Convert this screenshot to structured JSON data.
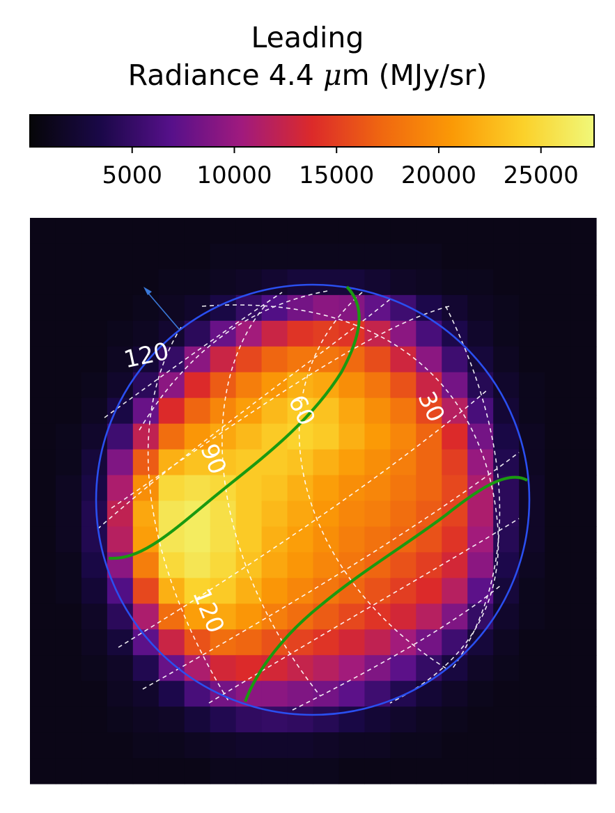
{
  "chart_data": {
    "type": "heatmap",
    "title": "Leading",
    "colorbar": {
      "label_prefix": "Radiance 4.4 ",
      "label_mu": "μ",
      "label_suffix": "m (MJy/sr)",
      "vmin": 0,
      "vmax": 27600,
      "ticks": [
        5000,
        10000,
        15000,
        20000,
        25000
      ],
      "tick_labels": [
        "5000",
        "10000",
        "15000",
        "20000",
        "25000"
      ],
      "colormap": "inferno-like",
      "stops": [
        "#060608",
        "#1a0848",
        "#56108a",
        "#a01a7e",
        "#dc2a2a",
        "#f06810",
        "#fb9a06",
        "#fbd12a",
        "#f0f87a"
      ]
    },
    "grid": {
      "rows": 22,
      "cols": 22,
      "fractions": [
        [
          0.03,
          0.03,
          0.03,
          0.03,
          0.03,
          0.03,
          0.03,
          0.03,
          0.03,
          0.03,
          0.03,
          0.03,
          0.03,
          0.03,
          0.03,
          0.03,
          0.03,
          0.03,
          0.03,
          0.03,
          0.03,
          0.03
        ],
        [
          0.03,
          0.03,
          0.03,
          0.03,
          0.03,
          0.03,
          0.03,
          0.04,
          0.04,
          0.04,
          0.04,
          0.04,
          0.04,
          0.04,
          0.04,
          0.04,
          0.03,
          0.03,
          0.03,
          0.03,
          0.03,
          0.03
        ],
        [
          0.03,
          0.03,
          0.03,
          0.03,
          0.03,
          0.04,
          0.04,
          0.05,
          0.06,
          0.08,
          0.1,
          0.1,
          0.1,
          0.08,
          0.06,
          0.05,
          0.04,
          0.04,
          0.03,
          0.03,
          0.03,
          0.03
        ],
        [
          0.03,
          0.03,
          0.03,
          0.03,
          0.04,
          0.05,
          0.07,
          0.12,
          0.18,
          0.24,
          0.3,
          0.34,
          0.33,
          0.27,
          0.2,
          0.13,
          0.08,
          0.05,
          0.04,
          0.03,
          0.03,
          0.03
        ],
        [
          0.03,
          0.03,
          0.03,
          0.04,
          0.05,
          0.08,
          0.16,
          0.28,
          0.38,
          0.46,
          0.52,
          0.54,
          0.52,
          0.45,
          0.34,
          0.22,
          0.13,
          0.07,
          0.04,
          0.03,
          0.03,
          0.03
        ],
        [
          0.03,
          0.03,
          0.03,
          0.05,
          0.09,
          0.18,
          0.34,
          0.46,
          0.56,
          0.62,
          0.66,
          0.66,
          0.63,
          0.57,
          0.47,
          0.34,
          0.2,
          0.1,
          0.05,
          0.03,
          0.03,
          0.03
        ],
        [
          0.03,
          0.03,
          0.04,
          0.07,
          0.16,
          0.34,
          0.5,
          0.6,
          0.68,
          0.74,
          0.8,
          0.78,
          0.72,
          0.66,
          0.58,
          0.46,
          0.3,
          0.15,
          0.07,
          0.04,
          0.03,
          0.03
        ],
        [
          0.03,
          0.03,
          0.05,
          0.12,
          0.28,
          0.5,
          0.62,
          0.7,
          0.76,
          0.82,
          0.86,
          0.84,
          0.78,
          0.72,
          0.66,
          0.56,
          0.42,
          0.22,
          0.09,
          0.04,
          0.03,
          0.03
        ],
        [
          0.03,
          0.04,
          0.07,
          0.2,
          0.44,
          0.64,
          0.74,
          0.78,
          0.82,
          0.86,
          0.88,
          0.86,
          0.8,
          0.75,
          0.7,
          0.62,
          0.5,
          0.3,
          0.12,
          0.05,
          0.03,
          0.03
        ],
        [
          0.03,
          0.04,
          0.1,
          0.32,
          0.6,
          0.8,
          0.84,
          0.84,
          0.86,
          0.86,
          0.84,
          0.8,
          0.76,
          0.72,
          0.68,
          0.62,
          0.54,
          0.36,
          0.14,
          0.05,
          0.03,
          0.03
        ],
        [
          0.03,
          0.05,
          0.12,
          0.4,
          0.72,
          0.9,
          0.92,
          0.9,
          0.86,
          0.84,
          0.8,
          0.76,
          0.72,
          0.7,
          0.66,
          0.62,
          0.56,
          0.4,
          0.16,
          0.06,
          0.03,
          0.03
        ],
        [
          0.03,
          0.05,
          0.14,
          0.44,
          0.78,
          0.94,
          0.96,
          0.92,
          0.86,
          0.82,
          0.78,
          0.74,
          0.7,
          0.68,
          0.64,
          0.6,
          0.55,
          0.4,
          0.16,
          0.06,
          0.03,
          0.03
        ],
        [
          0.03,
          0.05,
          0.14,
          0.42,
          0.76,
          0.94,
          0.96,
          0.92,
          0.86,
          0.8,
          0.76,
          0.72,
          0.68,
          0.65,
          0.62,
          0.58,
          0.52,
          0.38,
          0.15,
          0.06,
          0.03,
          0.03
        ],
        [
          0.03,
          0.04,
          0.12,
          0.34,
          0.68,
          0.9,
          0.94,
          0.9,
          0.84,
          0.78,
          0.74,
          0.7,
          0.66,
          0.62,
          0.58,
          0.54,
          0.48,
          0.34,
          0.13,
          0.05,
          0.03,
          0.03
        ],
        [
          0.03,
          0.04,
          0.09,
          0.24,
          0.56,
          0.8,
          0.88,
          0.86,
          0.8,
          0.74,
          0.7,
          0.66,
          0.62,
          0.58,
          0.54,
          0.5,
          0.42,
          0.26,
          0.1,
          0.04,
          0.03,
          0.03
        ],
        [
          0.03,
          0.03,
          0.06,
          0.16,
          0.4,
          0.64,
          0.76,
          0.78,
          0.74,
          0.68,
          0.64,
          0.6,
          0.56,
          0.52,
          0.48,
          0.42,
          0.32,
          0.18,
          0.07,
          0.04,
          0.03,
          0.03
        ],
        [
          0.03,
          0.03,
          0.05,
          0.1,
          0.26,
          0.46,
          0.58,
          0.64,
          0.62,
          0.58,
          0.55,
          0.52,
          0.48,
          0.44,
          0.38,
          0.3,
          0.2,
          0.1,
          0.05,
          0.03,
          0.03,
          0.03
        ],
        [
          0.03,
          0.03,
          0.04,
          0.06,
          0.14,
          0.28,
          0.4,
          0.48,
          0.5,
          0.48,
          0.45,
          0.42,
          0.38,
          0.32,
          0.26,
          0.18,
          0.11,
          0.06,
          0.04,
          0.03,
          0.03,
          0.03
        ],
        [
          0.03,
          0.03,
          0.03,
          0.05,
          0.07,
          0.13,
          0.22,
          0.3,
          0.34,
          0.34,
          0.32,
          0.3,
          0.26,
          0.2,
          0.14,
          0.09,
          0.06,
          0.04,
          0.03,
          0.03,
          0.03,
          0.03
        ],
        [
          0.03,
          0.03,
          0.03,
          0.04,
          0.05,
          0.06,
          0.1,
          0.14,
          0.17,
          0.18,
          0.17,
          0.15,
          0.12,
          0.09,
          0.07,
          0.05,
          0.04,
          0.03,
          0.03,
          0.03,
          0.03,
          0.03
        ],
        [
          0.03,
          0.03,
          0.03,
          0.03,
          0.04,
          0.04,
          0.05,
          0.06,
          0.07,
          0.07,
          0.07,
          0.06,
          0.05,
          0.05,
          0.04,
          0.04,
          0.03,
          0.03,
          0.03,
          0.03,
          0.03,
          0.03
        ],
        [
          0.03,
          0.03,
          0.03,
          0.03,
          0.03,
          0.03,
          0.03,
          0.04,
          0.04,
          0.04,
          0.04,
          0.04,
          0.03,
          0.03,
          0.03,
          0.03,
          0.03,
          0.03,
          0.03,
          0.03,
          0.03,
          0.03
        ]
      ]
    },
    "overlay_labels": [
      "120",
      "90",
      "60",
      "30",
      "120"
    ],
    "colors": {
      "limb_circle": "#2a4ff0",
      "green_curves": "#1a9a10",
      "grid_lines": "#ffffff",
      "arrow": "#3a78d8"
    }
  }
}
